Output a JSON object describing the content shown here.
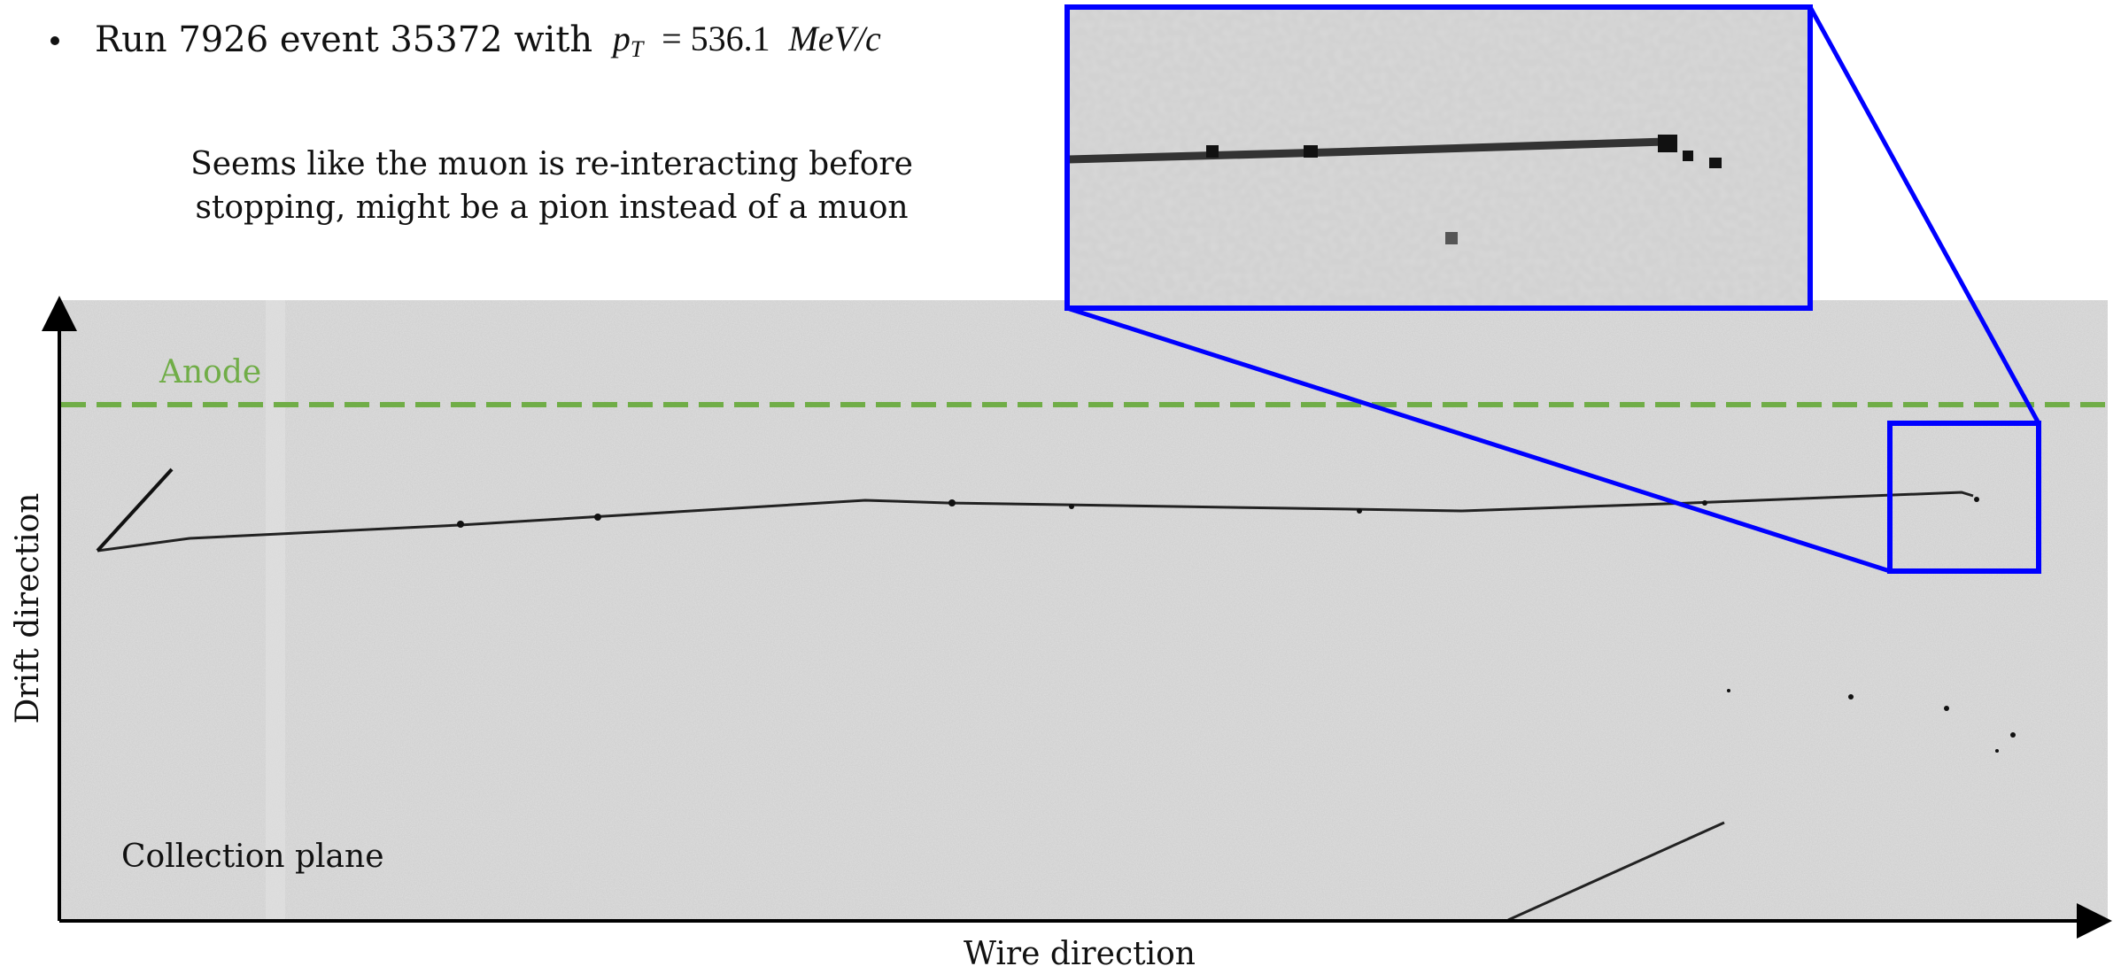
{
  "bullet": {
    "prefix": "Run 7926 event 35372 with",
    "symbol": "p",
    "subscript": "T",
    "relation": "= 536.1",
    "unit": "MeV/c"
  },
  "note": {
    "lines": [
      "Seems like the muon is re-interacting before",
      "stopping, might be a pion instead of a muon"
    ]
  },
  "display": {
    "anode_label": "Anode",
    "plane_label": "Collection plane",
    "y_axis_label": "Drift direction",
    "x_axis_label": "Wire direction"
  }
}
